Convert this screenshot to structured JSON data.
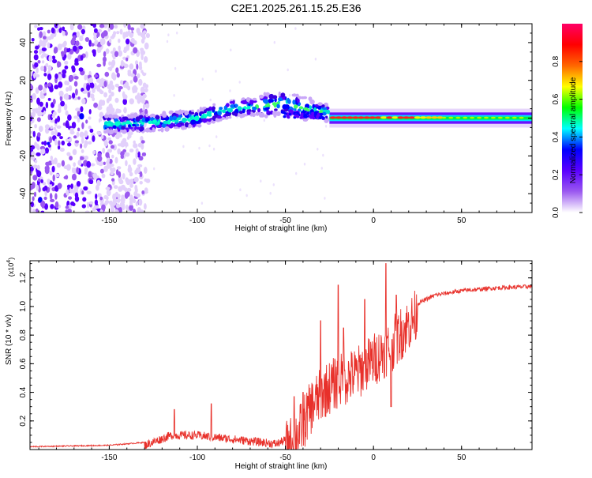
{
  "title": "C2E1.2025.261.15.25.E36",
  "chart_data": [
    {
      "type": "heatmap",
      "xlabel": "Height of straight line (km)",
      "ylabel": "Frequency (Hz)",
      "xlim": [
        -195,
        90
      ],
      "ylim": [
        -50,
        50
      ],
      "x_ticks": [
        -150,
        -100,
        -50,
        0,
        50
      ],
      "y_ticks": [
        -40,
        -20,
        0,
        20,
        40
      ],
      "colorbar": {
        "label": "Normalized spectral amplitude",
        "range": [
          0,
          1
        ],
        "ticks": [
          "0.0",
          "0.2",
          "0.4",
          "0.6",
          "0.8"
        ],
        "colors": [
          "#ffffff",
          "#9b59f0",
          "#5a00ff",
          "#0000ff",
          "#00ffff",
          "#00ff00",
          "#ffff00",
          "#ff6600",
          "#ff0000",
          "#ff0066"
        ]
      },
      "ridge": {
        "x": [
          -153,
          -140,
          -120,
          -100,
          -90,
          -80,
          -70,
          -60,
          -50,
          -40,
          -30,
          -20,
          0,
          20,
          50,
          90
        ],
        "freq": [
          -3,
          -3,
          -2,
          0,
          3,
          5,
          6,
          7,
          8,
          5,
          4,
          1,
          0,
          0,
          0,
          0
        ]
      },
      "noise_region_x": [
        -195,
        -128
      ]
    },
    {
      "type": "line",
      "xlabel": "Height of straight line (km)",
      "ylabel": "SNR (10 * v/v)",
      "multiplier": "(x10",
      "multiplier_exp": "4",
      "multiplier_close": ")",
      "xlim": [
        -195,
        90
      ],
      "ylim": [
        0,
        1.32
      ],
      "x_ticks": [
        -150,
        -100,
        -50,
        0,
        50
      ],
      "y_ticks": [
        "0.2",
        "0.4",
        "0.6",
        "0.8",
        "1.0",
        "1.2"
      ],
      "color": "#e8302a",
      "envelope": {
        "x": [
          -195,
          -150,
          -130,
          -115,
          -100,
          -85,
          -70,
          -55,
          -48,
          -42,
          -35,
          -28,
          -20,
          -10,
          0,
          10,
          18,
          25,
          35,
          50,
          70,
          90
        ],
        "y": [
          0.02,
          0.03,
          0.05,
          0.12,
          0.12,
          0.1,
          0.08,
          0.06,
          0.1,
          0.2,
          0.38,
          0.48,
          0.55,
          0.6,
          0.7,
          0.8,
          0.92,
          1.02,
          1.08,
          1.11,
          1.13,
          1.14
        ]
      },
      "spikes": [
        {
          "x": -113,
          "y": 0.28
        },
        {
          "x": -92,
          "y": 0.32
        },
        {
          "x": -45,
          "y": 0.37
        },
        {
          "x": -40,
          "y": 0.4
        },
        {
          "x": -30,
          "y": 0.9
        },
        {
          "x": -20,
          "y": 1.15
        },
        {
          "x": -17,
          "y": 0.85
        },
        {
          "x": -5,
          "y": 1.05
        },
        {
          "x": 7,
          "y": 1.3
        },
        {
          "x": 13,
          "y": 1.08
        },
        {
          "x": 10,
          "y": 0.3
        }
      ]
    }
  ]
}
